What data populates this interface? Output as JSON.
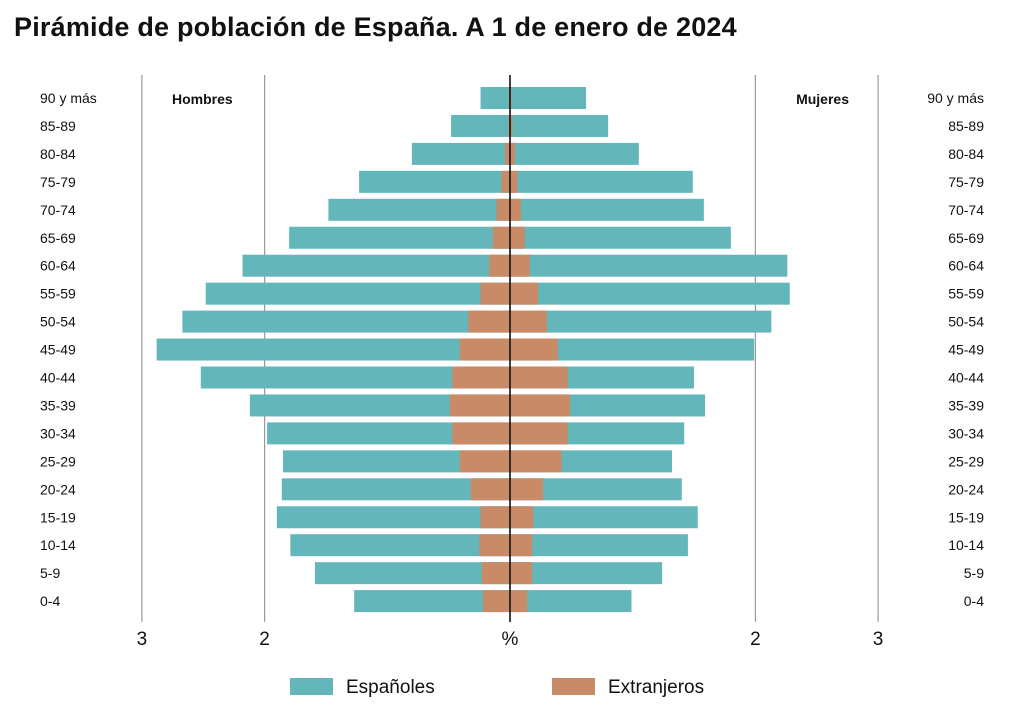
{
  "title": "Pirámide de población de España. A 1 de enero de 2024",
  "colors": {
    "espanoles": "#63b7ba",
    "extranjeros": "#c98a68",
    "grid": "#9a9a9a",
    "axis": "#111111"
  },
  "chart_data": {
    "type": "bar",
    "orientation": "horizontal-pyramid",
    "title": "Pirámide de población de España. A 1 de enero de 2024",
    "left_label": "Hombres",
    "right_label": "Mujeres",
    "center_unit": "%",
    "categories": [
      "90 y más",
      "85-89",
      "80-84",
      "75-79",
      "70-74",
      "65-69",
      "60-64",
      "55-59",
      "50-54",
      "45-49",
      "40-44",
      "35-39",
      "30-34",
      "25-29",
      "20-24",
      "15-19",
      "10-14",
      "5-9",
      "0-4"
    ],
    "xlim": [
      0,
      6
    ],
    "x_ticks": [
      "6",
      "5",
      "3",
      "2",
      "%",
      "2",
      "3",
      "5",
      "6"
    ],
    "x_tick_values": [
      -6,
      -5,
      -3,
      -2,
      0,
      2,
      3,
      5,
      6
    ],
    "grid": true,
    "legend_position": "bottom",
    "series": [
      {
        "name": "Españoles",
        "key": "espanoles",
        "side": "Hombres",
        "values": [
          0.24,
          0.48,
          0.8,
          1.23,
          1.48,
          1.8,
          2.18,
          2.48,
          2.67,
          2.88,
          2.52,
          2.12,
          1.98,
          1.85,
          1.86,
          1.9,
          1.79,
          1.59,
          1.27
        ]
      },
      {
        "name": "Extranjeros",
        "key": "extranjeros",
        "side": "Hombres",
        "values": [
          0.01,
          0.01,
          0.04,
          0.07,
          0.11,
          0.14,
          0.17,
          0.24,
          0.34,
          0.41,
          0.47,
          0.49,
          0.47,
          0.41,
          0.32,
          0.24,
          0.25,
          0.23,
          0.22
        ]
      },
      {
        "name": "Españoles",
        "key": "espanoles",
        "side": "Mujeres",
        "values": [
          0.62,
          0.8,
          1.05,
          1.49,
          1.58,
          1.8,
          2.26,
          2.28,
          2.13,
          1.99,
          1.5,
          1.59,
          1.42,
          1.32,
          1.4,
          1.53,
          1.45,
          1.24,
          0.99
        ]
      },
      {
        "name": "Extranjeros",
        "key": "extranjeros",
        "side": "Mujeres",
        "values": [
          0.01,
          0.02,
          0.04,
          0.06,
          0.09,
          0.12,
          0.16,
          0.23,
          0.3,
          0.39,
          0.47,
          0.49,
          0.47,
          0.42,
          0.27,
          0.19,
          0.18,
          0.18,
          0.14
        ]
      }
    ]
  },
  "legend": [
    {
      "label": "Españoles",
      "key": "espanoles"
    },
    {
      "label": "Extranjeros",
      "key": "extranjeros"
    }
  ]
}
